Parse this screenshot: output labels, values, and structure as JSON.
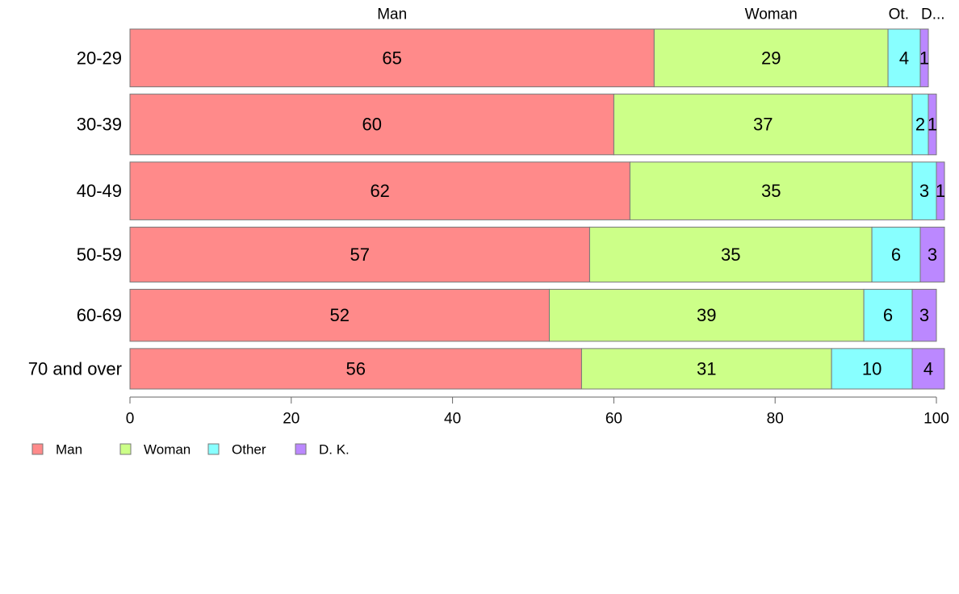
{
  "chart_data": {
    "type": "bar",
    "orientation": "horizontal",
    "stacked": true,
    "percent": true,
    "categories": [
      "20-29",
      "30-39",
      "40-49",
      "50-59",
      "60-69",
      "70 and over"
    ],
    "row_widths": [
      0.2,
      0.21,
      0.2,
      0.19,
      0.18,
      0.14
    ],
    "series": [
      {
        "name": "Man",
        "color": "#ff8a8a",
        "values": [
          65,
          60,
          62,
          57,
          52,
          56
        ]
      },
      {
        "name": "Woman",
        "color": "#ccff88",
        "values": [
          29,
          37,
          35,
          35,
          39,
          31
        ]
      },
      {
        "name": "Other",
        "color": "#88ffff",
        "values": [
          4,
          2,
          3,
          6,
          6,
          10
        ]
      },
      {
        "name": "D. K.",
        "color": "#bb88ff",
        "values": [
          1,
          1,
          1,
          3,
          3,
          4
        ]
      }
    ],
    "top_labels": [
      "Man",
      "Woman",
      "Ot.",
      "D..."
    ],
    "xlim": [
      0,
      100
    ],
    "xticks": [
      0,
      20,
      40,
      60,
      80,
      100
    ],
    "legend": {
      "position": "bottom-left",
      "entries": [
        "Man",
        "Woman",
        "Other",
        "D. K."
      ]
    },
    "grid": false
  }
}
